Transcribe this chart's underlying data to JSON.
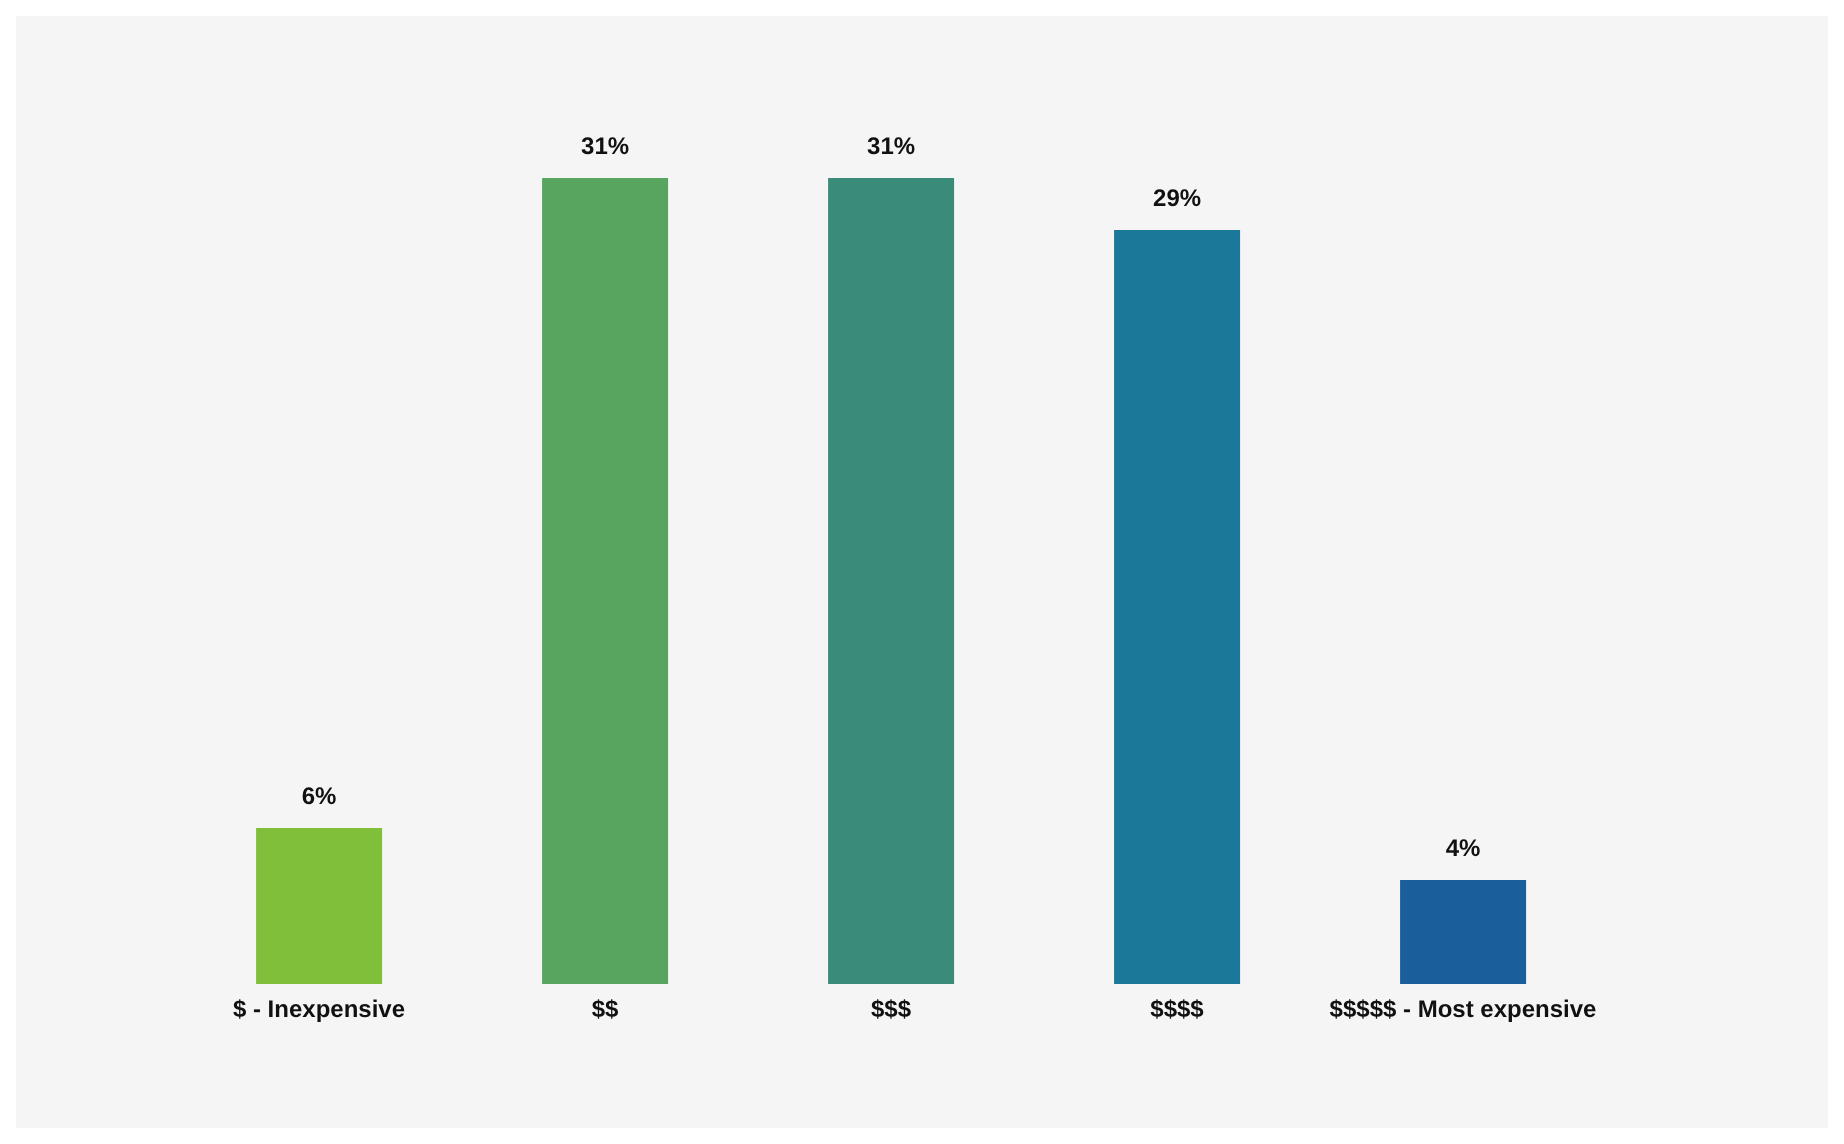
{
  "chart_data": {
    "type": "bar",
    "categories": [
      "$ - Inexpensive",
      "$$",
      "$$$",
      "$$$$",
      "$$$$$ - Most expensive"
    ],
    "values": [
      6,
      31,
      31,
      29,
      4
    ],
    "colors": [
      "#7fbf3a",
      "#57a55e",
      "#3a8c78",
      "#1c7898",
      "#1a5e9c"
    ],
    "value_labels": [
      "6%",
      "31%",
      "31%",
      "29%",
      "4%"
    ]
  }
}
